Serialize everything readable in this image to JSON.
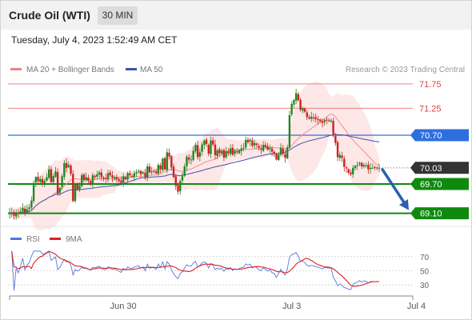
{
  "header": {
    "title": "Crude Oil (WTI)",
    "timeframe": "30 MIN",
    "datetime": "Tuesday, July 4, 2023 1:52:49 AM CET"
  },
  "legend": {
    "ma20_label": "MA 20 + Bollinger Bands",
    "ma50_label": "MA 50",
    "credit": "Research © 2023 Trading Central",
    "rsi_label": "RSI",
    "rsi_ma_label": "9MA"
  },
  "chart_data": [
    {
      "type": "candlestick",
      "ylim": [
        68.88,
        71.88
      ],
      "x_ticks": [
        "Jun 30",
        "Jul 3",
        "Jul 4"
      ],
      "levels": [
        {
          "value": 71.75,
          "label": "71.75",
          "kind": "resistance",
          "color": "#f08080"
        },
        {
          "value": 71.25,
          "label": "71.25",
          "kind": "resistance",
          "color": "#f08080"
        },
        {
          "value": 70.7,
          "label": "70.70",
          "kind": "pivot",
          "color": "#2e6fe0"
        },
        {
          "value": 70.03,
          "label": "70.03",
          "kind": "last_price",
          "color": "#333333"
        },
        {
          "value": 69.7,
          "label": "69.70",
          "kind": "target",
          "color": "#0f8a0f"
        },
        {
          "value": 69.1,
          "label": "69.10",
          "kind": "target",
          "color": "#0f8a0f"
        }
      ],
      "forecast_arrow": {
        "from": 70.03,
        "to": 69.1
      },
      "close": [
        69.11,
        69.12,
        69.05,
        69.12,
        69.1,
        69.14,
        69.21,
        69.12,
        69.18,
        69.22,
        69.36,
        69.72,
        69.84,
        69.76,
        69.8,
        69.72,
        69.76,
        69.84,
        70.0,
        69.74,
        69.86,
        69.96,
        69.5,
        69.62,
        69.86,
        70.13,
        70.03,
        70.09,
        69.91,
        69.35,
        69.69,
        69.59,
        69.67,
        69.88,
        69.78,
        69.84,
        69.76,
        69.7,
        69.88,
        69.84,
        69.9,
        69.94,
        69.84,
        69.8,
        69.8,
        69.92,
        69.88,
        69.82,
        69.84,
        69.8,
        69.76,
        69.72,
        69.86,
        69.8,
        69.92,
        69.88,
        69.86,
        69.92,
        69.94,
        69.96,
        69.9,
        69.94,
        69.84,
        70.06,
        69.94,
        69.96,
        69.96,
        69.92,
        70.09,
        70.0,
        70.22,
        70.0,
        70.35,
        70.26,
        70.04,
        69.84,
        69.66,
        69.54,
        69.76,
        69.86,
        70.06,
        70.26,
        70.2,
        70.2,
        70.38,
        70.5,
        70.25,
        70.35,
        70.51,
        70.59,
        70.52,
        70.32,
        70.59,
        70.51,
        70.29,
        70.39,
        70.33,
        70.38,
        70.24,
        70.37,
        70.33,
        70.43,
        70.3,
        70.38,
        70.35,
        70.39,
        70.43,
        70.44,
        70.6,
        70.56,
        70.6,
        70.48,
        70.54,
        70.5,
        70.44,
        70.4,
        70.5,
        70.46,
        70.4,
        70.44,
        70.36,
        70.33,
        70.2,
        70.3,
        70.44,
        70.32,
        70.24,
        70.45,
        71.11,
        71.34,
        71.42,
        71.56,
        71.42,
        71.22,
        71.25,
        71.18,
        71.07,
        71.04,
        71.08,
        71.06,
        71.03,
        71.01,
        70.99,
        70.95,
        71.01,
        71.0,
        70.99,
        71.0,
        70.7,
        70.54,
        70.25,
        70.3,
        70.23,
        70.05,
        70.02,
        69.93,
        69.9,
        70.03,
        70.07,
        70.09,
        70.13,
        70.06,
        70.09,
        70.08,
        70.0,
        70.03,
        70.03,
        70.03,
        70.03,
        70.03
      ]
    },
    {
      "type": "line",
      "name": "RSI",
      "ylim": [
        20,
        80
      ],
      "y_ticks": [
        70,
        50,
        30
      ],
      "x_ticks": [
        "Jun 30",
        "Jul 3",
        "Jul 4"
      ]
    }
  ],
  "colors": {
    "resistance": "#f08080",
    "pivot": "#2e6fe0",
    "support": "#0f8a0f",
    "ma20": "#ee9090",
    "ma50": "#3f55a5",
    "band_fill": "#fde4e4",
    "rsi": "#5577dd",
    "rsi_ma": "#dd2020",
    "arrow": "#2a5fb0",
    "candle_up": "#228822",
    "candle_down": "#cc2222"
  }
}
